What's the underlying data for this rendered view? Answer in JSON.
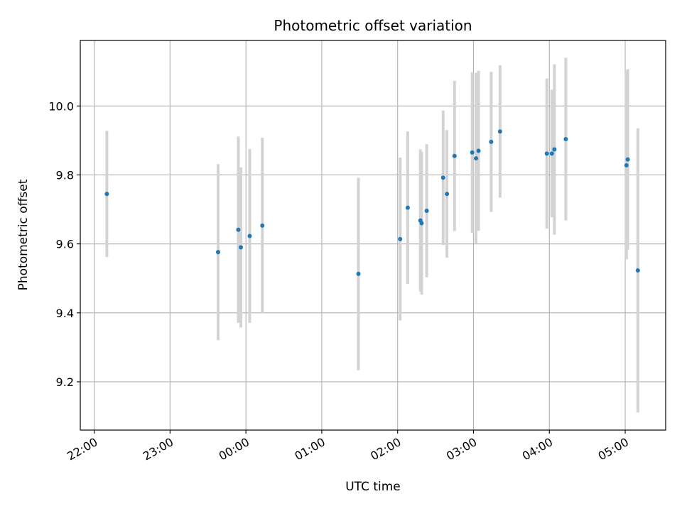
{
  "chart_data": {
    "type": "scatter",
    "title": "Photometric offset variation",
    "xlabel": "UTC time",
    "ylabel": "Photometric offset",
    "x_axis_kind": "time",
    "x_start_label": "22:00",
    "xlim": [
      "21:49",
      "05:32"
    ],
    "ylim": [
      9.06,
      10.19
    ],
    "grid": true,
    "x_ticks": [
      "22:00",
      "23:00",
      "00:00",
      "01:00",
      "02:00",
      "03:00",
      "04:00",
      "05:00"
    ],
    "y_ticks": [
      "9.2",
      "9.4",
      "9.6",
      "9.8",
      "10.0"
    ],
    "marker_color": "#1f77b4",
    "errorbar_color": "#d3d3d3",
    "points": [
      {
        "x": "22:10",
        "y": 9.745,
        "err": 0.183
      },
      {
        "x": "23:38",
        "y": 9.576,
        "err": 0.255
      },
      {
        "x": "23:54",
        "y": 9.641,
        "err": 0.27
      },
      {
        "x": "23:56",
        "y": 9.59,
        "err": 0.232
      },
      {
        "x": "00:03",
        "y": 9.623,
        "err": 0.252
      },
      {
        "x": "00:13",
        "y": 9.653,
        "err": 0.255
      },
      {
        "x": "01:29",
        "y": 9.513,
        "err": 0.279
      },
      {
        "x": "02:02",
        "y": 9.614,
        "err": 0.236
      },
      {
        "x": "02:08",
        "y": 9.705,
        "err": 0.221
      },
      {
        "x": "02:18",
        "y": 9.668,
        "err": 0.206
      },
      {
        "x": "02:19",
        "y": 9.66,
        "err": 0.207
      },
      {
        "x": "02:23",
        "y": 9.696,
        "err": 0.193
      },
      {
        "x": "02:36",
        "y": 9.792,
        "err": 0.195
      },
      {
        "x": "02:39",
        "y": 9.745,
        "err": 0.185
      },
      {
        "x": "02:45",
        "y": 9.855,
        "err": 0.218
      },
      {
        "x": "02:59",
        "y": 9.865,
        "err": 0.233
      },
      {
        "x": "03:02",
        "y": 9.848,
        "err": 0.248
      },
      {
        "x": "03:04",
        "y": 9.87,
        "err": 0.232
      },
      {
        "x": "03:14",
        "y": 9.896,
        "err": 0.203
      },
      {
        "x": "03:21",
        "y": 9.926,
        "err": 0.192
      },
      {
        "x": "03:58",
        "y": 9.862,
        "err": 0.218
      },
      {
        "x": "04:02",
        "y": 9.862,
        "err": 0.185
      },
      {
        "x": "04:04",
        "y": 9.874,
        "err": 0.247
      },
      {
        "x": "04:13",
        "y": 9.904,
        "err": 0.236
      },
      {
        "x": "05:01",
        "y": 9.828,
        "err": 0.273
      },
      {
        "x": "05:02",
        "y": 9.845,
        "err": 0.262
      },
      {
        "x": "05:10",
        "y": 9.523,
        "err": 0.412
      }
    ]
  }
}
